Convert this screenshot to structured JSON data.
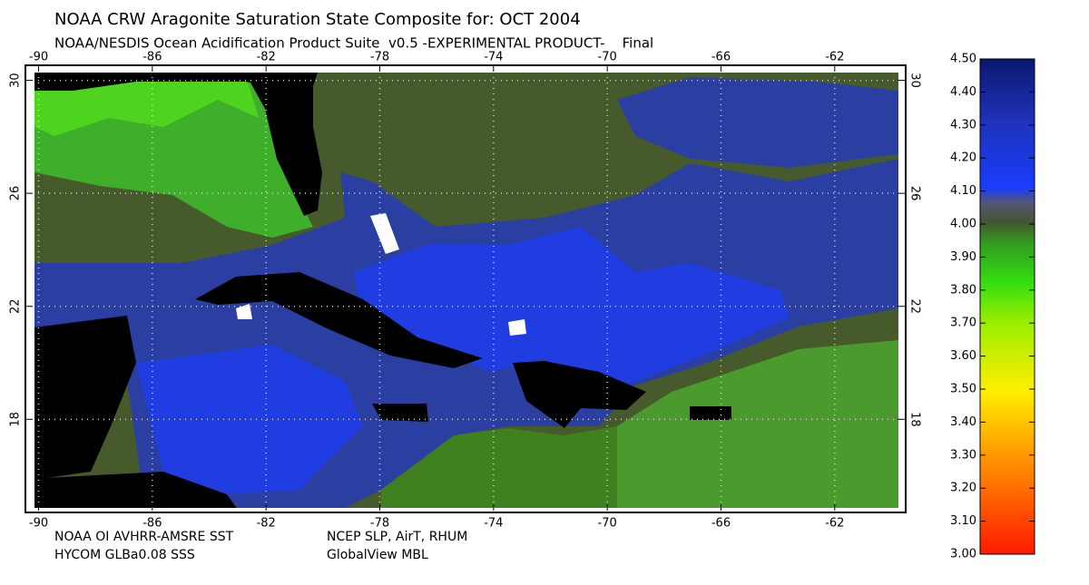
{
  "map": {
    "title": "NOAA CRW Aragonite Saturation State Composite for: OCT 2004",
    "subtitle": "NOAA/NESDIS Ocean Acidification Product Suite  v0.5 -EXPERIMENTAL PRODUCT-    Final",
    "xlim": [
      -90.4,
      -59.6
    ],
    "ylim": [
      14.8,
      30.5
    ],
    "xticks": [
      -90,
      -86,
      -82,
      -78,
      -74,
      -70,
      -66,
      -62
    ],
    "yticks": [
      18,
      22,
      26,
      30
    ],
    "grid": true,
    "footer": [
      [
        "NOAA OI AVHRR-AMSRE SST",
        "NCEP SLP, AirT, RHUM"
      ],
      [
        "HYCOM GLBa0.08 SSS",
        "GlobalView MBL"
      ]
    ],
    "colorbar": {
      "lim": [
        3.0,
        4.5
      ],
      "ticks": [
        {
          "value": 3.0,
          "label": "3.00"
        },
        {
          "value": 3.1,
          "label": "3.10"
        },
        {
          "value": 3.2,
          "label": "3.20"
        },
        {
          "value": 3.3,
          "label": "3.30"
        },
        {
          "value": 3.4,
          "label": "3.40"
        },
        {
          "value": 3.5,
          "label": "3.50"
        },
        {
          "value": 3.6,
          "label": "3.60"
        },
        {
          "value": 3.7,
          "label": "3.70"
        },
        {
          "value": 3.8,
          "label": "3.80"
        },
        {
          "value": 3.9,
          "label": "3.90"
        },
        {
          "value": 4.0,
          "label": "4.00"
        },
        {
          "value": 4.1,
          "label": "4.10"
        },
        {
          "value": 4.2,
          "label": "4.20"
        },
        {
          "value": 4.3,
          "label": "4.30"
        },
        {
          "value": 4.4,
          "label": "4.40"
        },
        {
          "value": 4.5,
          "label": "4.50"
        }
      ]
    }
  }
}
